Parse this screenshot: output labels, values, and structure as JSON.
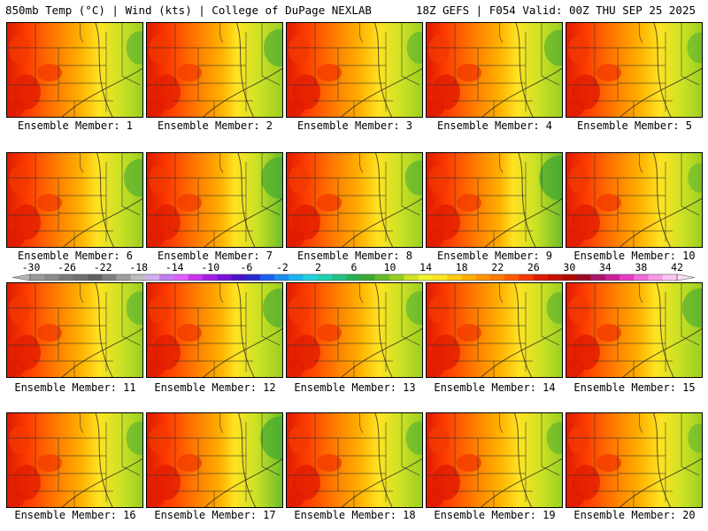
{
  "header": {
    "left": "850mb Temp (°C) | Wind (kts) | College of DuPage NEXLAB",
    "right": "18Z GEFS | F054 Valid: 00Z THU SEP 25 2025"
  },
  "caption_prefix": "Ensemble Member:",
  "members": [
    {
      "number": "1",
      "label": "Ensemble Member: 1",
      "warm": 0.72,
      "cool": 0.3
    },
    {
      "number": "2",
      "label": "Ensemble Member: 2",
      "warm": 0.55,
      "cool": 0.45
    },
    {
      "number": "3",
      "label": "Ensemble Member: 3",
      "warm": 0.78,
      "cool": 0.25
    },
    {
      "number": "4",
      "label": "Ensemble Member: 4",
      "warm": 0.8,
      "cool": 0.4
    },
    {
      "number": "5",
      "label": "Ensemble Member: 5",
      "warm": 0.75,
      "cool": 0.2
    },
    {
      "number": "6",
      "label": "Ensemble Member: 6",
      "warm": 0.7,
      "cool": 0.45
    },
    {
      "number": "7",
      "label": "Ensemble Member: 7",
      "warm": 0.6,
      "cool": 0.6
    },
    {
      "number": "8",
      "label": "Ensemble Member: 8",
      "warm": 0.8,
      "cool": 0.35
    },
    {
      "number": "9",
      "label": "Ensemble Member: 9",
      "warm": 0.65,
      "cool": 0.7
    },
    {
      "number": "10",
      "label": "Ensemble Member: 10",
      "warm": 0.75,
      "cool": 0.15
    },
    {
      "number": "11",
      "label": "Ensemble Member: 11",
      "warm": 0.72,
      "cool": 0.3
    },
    {
      "number": "12",
      "label": "Ensemble Member: 12",
      "warm": 0.7,
      "cool": 0.5
    },
    {
      "number": "13",
      "label": "Ensemble Member: 13",
      "warm": 0.7,
      "cool": 0.3
    },
    {
      "number": "14",
      "label": "Ensemble Member: 14",
      "warm": 0.72,
      "cool": 0.25
    },
    {
      "number": "15",
      "label": "Ensemble Member: 15",
      "warm": 0.85,
      "cool": 0.5
    },
    {
      "number": "16",
      "label": "Ensemble Member: 16",
      "warm": 0.62,
      "cool": 0.3
    },
    {
      "number": "17",
      "label": "Ensemble Member: 17",
      "warm": 0.65,
      "cool": 0.65
    },
    {
      "number": "18",
      "label": "Ensemble Member: 18",
      "warm": 0.75,
      "cool": 0.3
    },
    {
      "number": "19",
      "label": "Ensemble Member: 19",
      "warm": 0.82,
      "cool": 0.25
    },
    {
      "number": "20",
      "label": "Ensemble Member: 20",
      "warm": 0.75,
      "cool": 0.15
    }
  ],
  "colorbar": {
    "labels": [
      "-30",
      "-26",
      "-22",
      "-18",
      "-14",
      "-10",
      "-6",
      "-2",
      "2",
      "6",
      "10",
      "14",
      "18",
      "22",
      "26",
      "30",
      "34",
      "38",
      "42"
    ],
    "colors": [
      "#9a9a9a",
      "#8a8a8a",
      "#7a7a7a",
      "#6f6f6f",
      "#606060",
      "#7e7e7e",
      "#9e9e9e",
      "#bdbdbd",
      "#d2aef2",
      "#bf7ff0",
      "#df60ff",
      "#cc33ee",
      "#a21fe6",
      "#7a12d9",
      "#4b12c8",
      "#2a2acc",
      "#1f5ff0",
      "#1d8cf0",
      "#19b4ee",
      "#21d2dd",
      "#1fcfae",
      "#22c084",
      "#26b055",
      "#3fa733",
      "#67bb2a",
      "#97cd22",
      "#cce225",
      "#f2f22e",
      "#ffe322",
      "#ffcc10",
      "#ffb000",
      "#ff9400",
      "#ff7a00",
      "#ff5a00",
      "#f23a00",
      "#e01b00",
      "#c81000",
      "#b00a00",
      "#980a22",
      "#a8176a",
      "#cc1f9a",
      "#e33cc4",
      "#f06bd6",
      "#f59be2",
      "#f9c7ef"
    ]
  }
}
